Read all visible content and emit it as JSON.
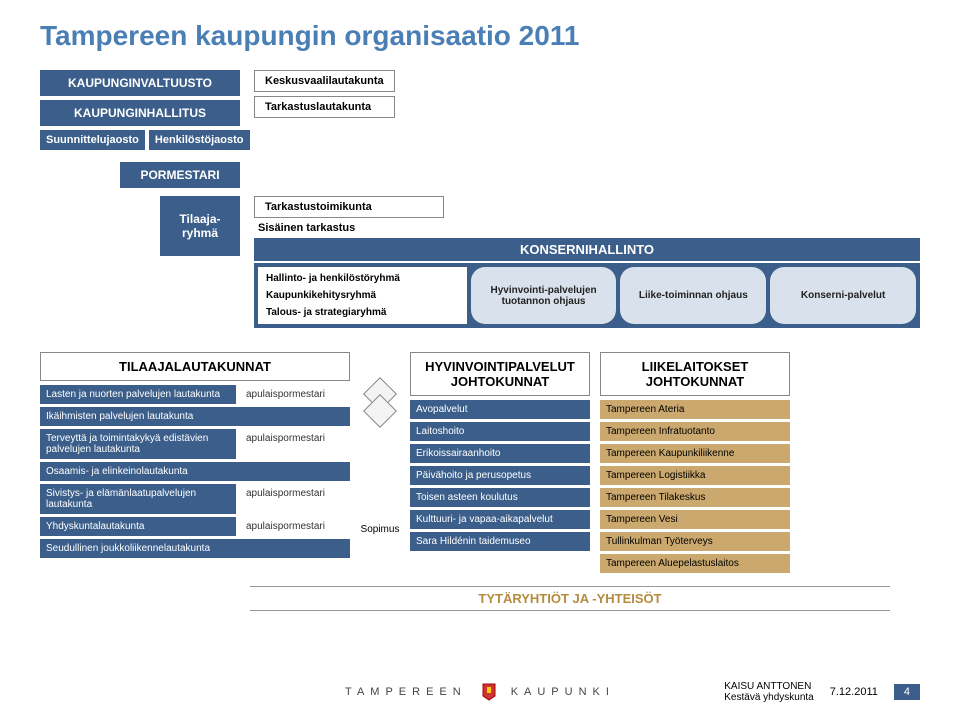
{
  "title": "Tampereen kaupungin organisaatio 2011",
  "council": "KAUPUNGINVALTUUSTO",
  "board": "KAUPUNGINHALLITUS",
  "sub1": "Suunnittelujaosto",
  "sub2": "Henkilöstöjaosto",
  "mayor": "PORMESTARI",
  "committees": [
    "Keskusvaalilautakunta",
    "Tarkastuslautakunta"
  ],
  "audit1": "Tarkastustoimikunta",
  "audit2": "Sisäinen tarkastus",
  "tilaaja": "Tilaaja-ryhmä",
  "konser_head": "KONSERNIHALLINTO",
  "konser_items": [
    "Hallinto- ja henkilöstöryhmä",
    "Kaupunkikehitysryhmä",
    "Talous- ja strategiaryhmä"
  ],
  "pills": [
    "Hyvinvointi-palvelujen tuotannon ohjaus",
    "Liike-toiminnan ohjaus",
    "Konserni-palvelut"
  ],
  "tilaaja_head": "TILAAJALAUTAKUNNAT",
  "hyv_head": "HYVINVOINTIPALVELUT JOHTOKUNNAT",
  "liik_head": "LIIKELAITOKSET JOHTOKUNNAT",
  "left_items": [
    {
      "t": "Lasten ja nuorten palvelujen lautakunta",
      "a": "apulaispormestari"
    },
    {
      "t": "Ikäihmisten palvelujen lautakunta",
      "a": ""
    },
    {
      "t": "Terveyttä ja toimintakykyä edistävien palvelujen lautakunta",
      "a": "apulaispormestari"
    },
    {
      "t": "Osaamis- ja elinkeinolautakunta",
      "a": ""
    },
    {
      "t": "Sivistys- ja elämänlaatupalvelujen lautakunta",
      "a": "apulaispormestari"
    },
    {
      "t": "Yhdyskuntalautakunta",
      "a": "apulaispormestari"
    },
    {
      "t": "Seudullinen joukkoliikennelautakunta",
      "a": ""
    }
  ],
  "sopimus": "Sopimus",
  "hyv_items": [
    "Avopalvelut",
    "Laitoshoito",
    "Erikoissairaanhoito",
    "Päivähoito ja perusopetus",
    "Toisen asteen koulutus",
    "Kulttuuri- ja vapaa-aikapalvelut",
    "Sara Hildénin taidemuseo"
  ],
  "liik_items": [
    "Tampereen Ateria",
    "Tampereen Infratuotanto",
    "Tampereen Kaupunkiliikenne",
    "Tampereen Logistiikka",
    "Tampereen Tilakeskus",
    "Tampereen Vesi",
    "Tullinkulman Työterveys",
    "Tampereen Aluepelastuslaitos"
  ],
  "subsidiary": "TYTÄRYHTIÖT JA -YHTEISÖT",
  "brand1": "TAMPEREEN",
  "brand2": "KAUPUNKI",
  "author1": "KAISU ANTTONEN",
  "author2": "Kestävä yhdyskunta",
  "date": "7.12.2011",
  "page": "4",
  "colors": {
    "blue": "#3b5e8a",
    "tan": "#cba96e",
    "pill": "#d9e2ec",
    "title": "#4a7fb5"
  }
}
